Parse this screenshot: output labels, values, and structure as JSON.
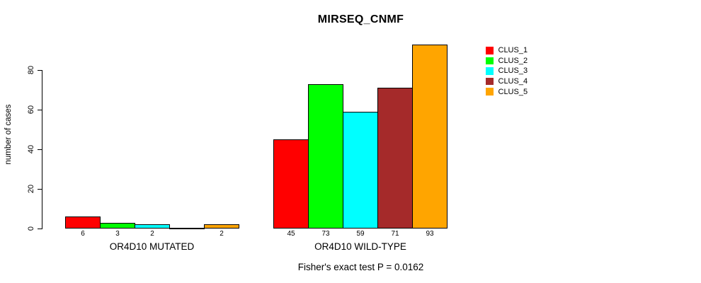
{
  "title": "MIRSEQ_CNMF",
  "subtitle": "Fisher's exact test P = 0.0162",
  "chart_data": {
    "type": "bar",
    "title": "MIRSEQ_CNMF",
    "ylabel": "number of cases",
    "xlabel": "",
    "ylim": [
      0,
      93
    ],
    "yticks": [
      0,
      20,
      40,
      60,
      80
    ],
    "grid": false,
    "legend_position": "top-right",
    "categories": [
      "OR4D10 MUTATED",
      "OR4D10 WILD-TYPE"
    ],
    "series": [
      {
        "name": "CLUS_1",
        "color": "#ff0000",
        "values": [
          6,
          45
        ],
        "value_labels": [
          "6",
          "45"
        ]
      },
      {
        "name": "CLUS_2",
        "color": "#00ff00",
        "values": [
          3,
          73
        ],
        "value_labels": [
          "3",
          "73"
        ]
      },
      {
        "name": "CLUS_3",
        "color": "#00ffff",
        "values": [
          2,
          59
        ],
        "value_labels": [
          "2",
          "59"
        ]
      },
      {
        "name": "CLUS_4",
        "color": "#a52a2a",
        "values": [
          0,
          71
        ],
        "value_labels": [
          "",
          "71"
        ]
      },
      {
        "name": "CLUS_5",
        "color": "#ffa500",
        "values": [
          2,
          93
        ],
        "value_labels": [
          "2",
          "93"
        ]
      }
    ],
    "annotation": "Fisher's exact test P = 0.0162"
  }
}
